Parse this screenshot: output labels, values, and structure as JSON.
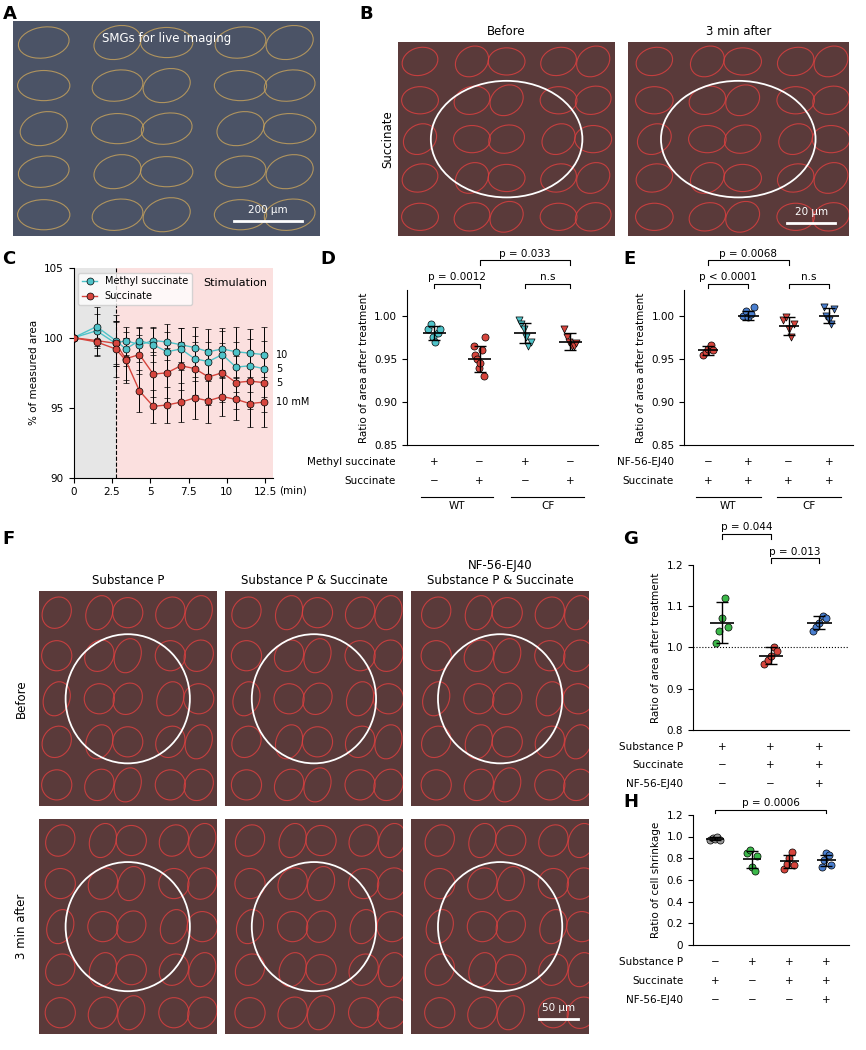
{
  "images": [
    {
      "panel": "A",
      "title": "SMGs for live imaging",
      "scale_bar": "200 µm"
    },
    {
      "panel": "B",
      "row_label": "Succinate",
      "columns": [
        "Before",
        "3 min after"
      ],
      "scale_bar": "20 µm"
    },
    {
      "panel": "F",
      "columns": [
        "Substance P",
        "Substance P & Succinate",
        "NF-56-EJ40\nSubstance P & Succinate"
      ],
      "rows": [
        "Before",
        "3 min after"
      ],
      "scale_bar": "50 µm"
    }
  ],
  "chart_data": [
    {
      "type": "line",
      "panel": "C",
      "ylabel": "% of measured area",
      "xlabel": "(min)",
      "x": [
        0,
        1.5,
        2.75,
        3.4,
        4.3,
        5.2,
        6.1,
        7.0,
        7.9,
        8.8,
        9.7,
        10.6,
        11.5,
        12.4
      ],
      "xlim": [
        0,
        13
      ],
      "xticks": [
        0,
        2.5,
        5,
        7.5,
        10,
        12.5
      ],
      "ylim": [
        90,
        105
      ],
      "yticks": [
        90,
        95,
        100,
        105
      ],
      "legend": "upper left",
      "shaded_regions": [
        {
          "start": 0,
          "end": 2.75,
          "color": "#e6e6e6"
        },
        {
          "start": 2.75,
          "end": 13,
          "color": "#fbe0df",
          "label": "Stimulation"
        }
      ],
      "series": [
        {
          "name": "Methyl succinate",
          "end_label": "10",
          "color": "#4fc3c9",
          "marker": "circle",
          "line_style": "solid",
          "values": [
            100,
            100.5,
            99.6,
            99.8,
            99.5,
            99.8,
            99.7,
            99.5,
            99.3,
            99.0,
            99.2,
            99.0,
            98.9,
            98.8
          ],
          "errors": [
            0,
            1.2,
            1.5,
            1.0,
            1.2,
            1.0,
            1.3,
            1.2,
            1.5,
            1.6,
            1.5,
            1.8,
            1.7,
            2.0
          ]
        },
        {
          "name": "Methyl succinate",
          "end_label": "5",
          "color": "#4fc3c9",
          "marker": "circle",
          "line_style": "solid",
          "values": [
            100,
            100.8,
            99.8,
            99.2,
            99.8,
            99.5,
            99.0,
            99.2,
            98.5,
            98.3,
            98.8,
            97.9,
            98.0,
            97.8
          ],
          "errors": [
            0,
            1.4,
            1.8,
            1.2,
            1.0,
            1.2,
            1.4,
            1.5,
            1.6,
            1.4,
            1.7,
            1.8,
            1.9,
            2.0
          ]
        },
        {
          "name": "Succinate",
          "end_label": "5",
          "color": "#d6453d",
          "marker": "circle",
          "line_style": "solid",
          "values": [
            100,
            99.8,
            99.6,
            98.5,
            98.8,
            97.4,
            97.5,
            98.0,
            97.8,
            97.2,
            97.5,
            96.8,
            96.9,
            96.8
          ],
          "errors": [
            0,
            1.0,
            1.6,
            1.5,
            1.4,
            1.6,
            1.8,
            1.7,
            1.9,
            2.0,
            2.1,
            1.9,
            2.0,
            2.1
          ]
        },
        {
          "name": "Succinate",
          "end_label": "10 mM",
          "color": "#d6453d",
          "marker": "circle",
          "line_style": "solid",
          "values": [
            100,
            99.7,
            99.2,
            98.4,
            96.2,
            95.1,
            95.2,
            95.4,
            95.7,
            95.5,
            95.8,
            95.6,
            95.3,
            95.4
          ],
          "errors": [
            0,
            1.0,
            2.0,
            1.6,
            1.5,
            1.2,
            1.3,
            1.4,
            1.5,
            1.6,
            1.4,
            1.5,
            1.7,
            1.8
          ]
        }
      ]
    },
    {
      "type": "dot_plot",
      "panel": "D",
      "ylabel": "Ratio of area after treatment",
      "tick_labels": "y",
      "ylim": [
        0.85,
        1.03
      ],
      "yticks": [
        0.85,
        {
          "value": 0.9,
          "label": "0.90"
        },
        0.95,
        {
          "value": 1,
          "label": "1.00"
        }
      ],
      "groups": [
        {
          "color": "#4fc3c9",
          "marker": "circle",
          "points": [
            0.985,
            0.99,
            0.975,
            0.97,
            0.98,
            0.985
          ],
          "mean": 0.98,
          "sd": 0.008
        },
        {
          "color": "#d6453d",
          "marker": "circle",
          "points": [
            0.965,
            0.955,
            0.95,
            0.94,
            0.945,
            0.96,
            0.93,
            0.975
          ],
          "mean": 0.95,
          "sd": 0.015
        },
        {
          "color": "#4fc3c9",
          "marker": "triangle_down",
          "points": [
            0.995,
            0.99,
            0.985,
            0.975,
            0.965,
            0.97
          ],
          "mean": 0.98,
          "sd": 0.012
        },
        {
          "color": "#d6453d",
          "marker": "triangle_down",
          "points": [
            0.985,
            0.975,
            0.97,
            0.965,
            0.965,
            0.968
          ],
          "mean": 0.97,
          "sd": 0.01
        }
      ],
      "conditions": [
        {
          "name": "Methyl succinate",
          "values": [
            "+",
            "−",
            "+",
            "−"
          ]
        },
        {
          "name": "Succinate",
          "values": [
            "−",
            "+",
            "−",
            "+"
          ]
        }
      ],
      "genotypes": [
        {
          "label": "WT",
          "span": [
            0,
            1
          ]
        },
        {
          "label": "CF",
          "span": [
            2,
            3
          ]
        }
      ],
      "comparisons": [
        {
          "groups": [
            0,
            1
          ],
          "label": "p = 0.0012"
        },
        {
          "groups": [
            2,
            3
          ],
          "label": "n.s"
        },
        {
          "groups": [
            1,
            3
          ],
          "label": "p = 0.033"
        }
      ]
    },
    {
      "type": "dot_plot",
      "panel": "E",
      "ylabel": "Ratio of area after treatment",
      "tick_labels": "y",
      "ylim": [
        0.85,
        1.03
      ],
      "yticks": [
        0.85,
        {
          "value": 0.9,
          "label": "0.90"
        },
        0.95,
        {
          "value": 1,
          "label": "1.00"
        }
      ],
      "groups": [
        {
          "color": "#d6453d",
          "marker": "circle",
          "points": [
            0.955,
            0.958,
            0.962,
            0.966,
            0.96
          ],
          "mean": 0.96,
          "sd": 0.005
        },
        {
          "color": "#4a7fd0",
          "marker": "circle",
          "points": [
            1.0,
            1.005,
            0.998,
            1.002,
            1.01
          ],
          "mean": 1.0,
          "sd": 0.005
        },
        {
          "color": "#d6453d",
          "marker": "triangle_down",
          "points": [
            0.995,
            0.998,
            0.985,
            0.975,
            0.99
          ],
          "mean": 0.988,
          "sd": 0.01
        },
        {
          "color": "#4a7fd0",
          "marker": "triangle_down",
          "points": [
            1.01,
            1.0,
            0.995,
            0.99,
            1.008
          ],
          "mean": 1.0,
          "sd": 0.009
        }
      ],
      "conditions": [
        {
          "name": "NF-56-EJ40",
          "values": [
            "−",
            "+",
            "−",
            "+"
          ]
        },
        {
          "name": "Succinate",
          "values": [
            "+",
            "+",
            "+",
            "+"
          ]
        }
      ],
      "genotypes": [
        {
          "label": "WT",
          "span": [
            0,
            1
          ]
        },
        {
          "label": "CF",
          "span": [
            2,
            3
          ]
        }
      ],
      "comparisons": [
        {
          "groups": [
            0,
            1
          ],
          "label": "p < 0.0001"
        },
        {
          "groups": [
            2,
            3
          ],
          "label": "n.s"
        },
        {
          "groups": [
            0,
            2
          ],
          "label": "p = 0.0068"
        }
      ]
    },
    {
      "type": "dot_plot",
      "panel": "G",
      "ylabel": "Ratio of area after treatment",
      "tick_labels": "y",
      "ylim": [
        0.8,
        1.2
      ],
      "yticks": [
        0.8,
        0.9,
        {
          "value": 1,
          "label": "1.0"
        },
        1.1,
        1.2
      ],
      "reference_line": 1,
      "groups": [
        {
          "color": "#3cb84a",
          "marker": "circle",
          "points": [
            1.01,
            1.04,
            1.07,
            1.12,
            1.05
          ],
          "mean": 1.06,
          "sd": 0.05
        },
        {
          "color": "#d6453d",
          "marker": "circle",
          "points": [
            0.96,
            0.97,
            0.98,
            1.0,
            0.99
          ],
          "mean": 0.98,
          "sd": 0.02
        },
        {
          "color": "#4a7fd0",
          "marker": "circle",
          "points": [
            1.04,
            1.05,
            1.06,
            1.075,
            1.07
          ],
          "mean": 1.06,
          "sd": 0.015
        }
      ],
      "conditions": [
        {
          "name": "Substance P",
          "values": [
            "+",
            "+",
            "+"
          ]
        },
        {
          "name": "Succinate",
          "values": [
            "−",
            "+",
            "+"
          ]
        },
        {
          "name": "NF-56-EJ40",
          "values": [
            "−",
            "−",
            "+"
          ]
        }
      ],
      "comparisons": [
        {
          "groups": [
            1,
            2
          ],
          "label": "p = 0.013"
        },
        {
          "groups": [
            0,
            1
          ],
          "label": "p = 0.044"
        }
      ]
    },
    {
      "type": "dot_plot",
      "panel": "H",
      "ylabel": "Ratio of cell shrinkage",
      "tick_labels": "y",
      "ylim": [
        0,
        1.2
      ],
      "yticks": [
        0,
        0.2,
        0.4,
        0.6,
        0.8,
        {
          "value": 1,
          "label": "1.0"
        },
        1.2
      ],
      "groups": [
        {
          "color": "#9a9a9a",
          "marker": "circle",
          "points": [
            0.97,
            0.99,
            0.98,
            1.0,
            0.97
          ],
          "mean": 0.98,
          "sd": 0.015
        },
        {
          "color": "#3cb84a",
          "marker": "circle",
          "points": [
            0.85,
            0.88,
            0.72,
            0.68,
            0.82
          ],
          "mean": 0.79,
          "sd": 0.08
        },
        {
          "color": "#d6453d",
          "marker": "circle",
          "points": [
            0.7,
            0.75,
            0.8,
            0.86,
            0.74
          ],
          "mean": 0.77,
          "sd": 0.06
        },
        {
          "color": "#4a7fd0",
          "marker": "circle",
          "points": [
            0.72,
            0.78,
            0.85,
            0.83,
            0.74
          ],
          "mean": 0.78,
          "sd": 0.05
        }
      ],
      "conditions": [
        {
          "name": "Substance P",
          "values": [
            "−",
            "+",
            "+",
            "+"
          ]
        },
        {
          "name": "Succinate",
          "values": [
            "+",
            "−",
            "+",
            "+"
          ]
        },
        {
          "name": "NF-56-EJ40",
          "values": [
            "−",
            "−",
            "−",
            "+"
          ]
        }
      ],
      "comparisons": [
        {
          "groups": [
            0,
            3
          ],
          "label": "p = 0.0006"
        }
      ]
    }
  ]
}
